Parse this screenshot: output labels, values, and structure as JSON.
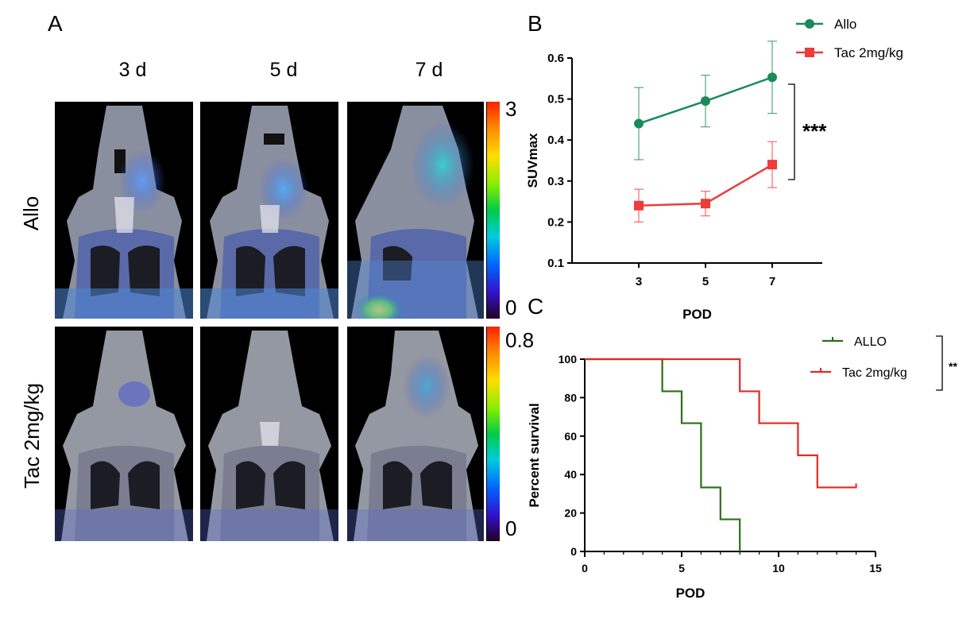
{
  "panels": {
    "a": "A",
    "b": "B",
    "c": "C"
  },
  "panel_a": {
    "columns": [
      "3 d",
      "5 d",
      "7 d"
    ],
    "rows": [
      "Allo",
      "Tac 2mg/kg"
    ],
    "colorbars": [
      {
        "max": "3",
        "min": "0"
      },
      {
        "max": "0.8",
        "min": "0"
      }
    ]
  },
  "chart_data": [
    {
      "type": "line",
      "panel": "B",
      "title": "",
      "xlabel": "POD",
      "ylabel": "SUVmax",
      "x": [
        3,
        5,
        7
      ],
      "xticks": [
        "3",
        "5",
        "7"
      ],
      "ylim": [
        0.1,
        0.6
      ],
      "yticks": [
        "0.1",
        "0.2",
        "0.3",
        "0.4",
        "0.5",
        "0.6"
      ],
      "series": [
        {
          "name": "Allo",
          "color": "#1a8a5a",
          "marker": "circle",
          "values": [
            0.44,
            0.495,
            0.553
          ],
          "errors": [
            0.088,
            0.063,
            0.088
          ]
        },
        {
          "name": "Tac 2mg/kg",
          "color": "#ee3b3b",
          "marker": "square",
          "values": [
            0.24,
            0.245,
            0.34
          ],
          "errors": [
            0.04,
            0.03,
            0.056
          ]
        }
      ],
      "significance": "***",
      "legend": "top-right"
    },
    {
      "type": "line",
      "subtype": "survival-step",
      "panel": "C",
      "title": "",
      "xlabel": "POD",
      "ylabel": "Percent survival",
      "xlim": [
        0,
        15
      ],
      "ylim": [
        0,
        100
      ],
      "xticks": [
        "0",
        "5",
        "10",
        "15"
      ],
      "yticks": [
        "0",
        "20",
        "40",
        "60",
        "80",
        "100"
      ],
      "series": [
        {
          "name": "ALLO",
          "color": "#2d6e1a",
          "times": [
            0,
            4,
            5,
            6,
            7,
            8
          ],
          "survival": [
            100,
            83.3,
            66.7,
            33.3,
            16.7,
            0
          ]
        },
        {
          "name": "Tac 2mg/kg",
          "color": "#dd2b24",
          "times": [
            0,
            8,
            9,
            11,
            12,
            14
          ],
          "survival": [
            100,
            83.3,
            66.7,
            50,
            33.3,
            33.3
          ]
        }
      ],
      "significance": "**",
      "legend": "top-right"
    }
  ]
}
